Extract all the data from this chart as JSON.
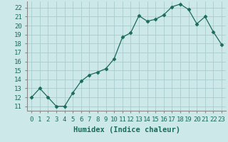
{
  "x": [
    0,
    1,
    2,
    3,
    4,
    5,
    6,
    7,
    8,
    9,
    10,
    11,
    12,
    13,
    14,
    15,
    16,
    17,
    18,
    19,
    20,
    21,
    22,
    23
  ],
  "y": [
    12,
    13,
    12,
    11,
    11,
    12.5,
    13.8,
    14.5,
    14.8,
    15.2,
    16.3,
    18.7,
    19.2,
    21.1,
    20.5,
    20.7,
    21.2,
    22.1,
    22.4,
    21.8,
    20.2,
    21.0,
    19.3,
    17.9
  ],
  "line_color": "#1a6b5a",
  "marker": "D",
  "marker_size": 2.5,
  "bg_color": "#cde8e8",
  "grid_color": "#aacccc",
  "xlabel": "Humidex (Indice chaleur)",
  "xlim": [
    -0.5,
    23.5
  ],
  "ylim": [
    10.5,
    22.7
  ],
  "yticks": [
    11,
    12,
    13,
    14,
    15,
    16,
    17,
    18,
    19,
    20,
    21,
    22
  ],
  "xtick_labels": [
    "0",
    "1",
    "2",
    "3",
    "4",
    "5",
    "6",
    "7",
    "8",
    "9",
    "10",
    "11",
    "12",
    "13",
    "14",
    "15",
    "16",
    "17",
    "18",
    "19",
    "20",
    "21",
    "22",
    "23"
  ],
  "xlabel_fontsize": 7.5,
  "tick_fontsize": 6.5
}
